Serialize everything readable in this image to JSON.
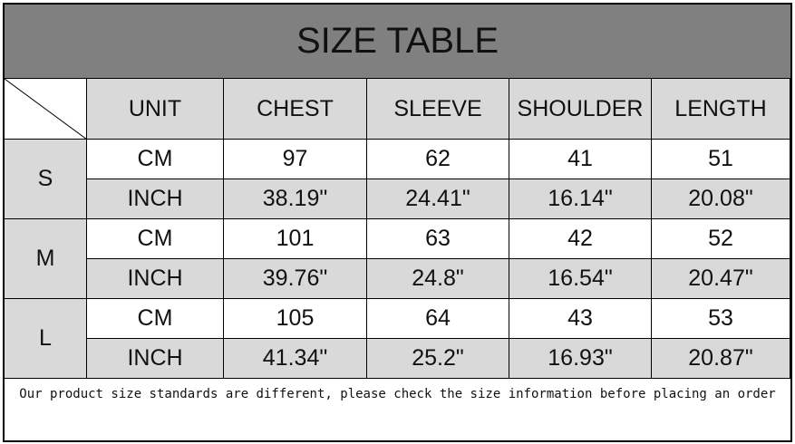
{
  "title": "SIZE TABLE",
  "headers": [
    "UNIT",
    "CHEST",
    "SLEEVE",
    "SHOULDER",
    "LENGTH"
  ],
  "sizes": [
    {
      "size": "S",
      "rows": [
        [
          "CM",
          "97",
          "62",
          "41",
          "51"
        ],
        [
          "INCH",
          "38.19\"",
          "24.41\"",
          "16.14\"",
          "20.08\""
        ]
      ]
    },
    {
      "size": "M",
      "rows": [
        [
          "CM",
          "101",
          "63",
          "42",
          "52"
        ],
        [
          "INCH",
          "39.76\"",
          "24.8\"",
          "16.54\"",
          "20.47\""
        ]
      ]
    },
    {
      "size": "L",
      "rows": [
        [
          "CM",
          "105",
          "64",
          "43",
          "53"
        ],
        [
          "INCH",
          "41.34\"",
          "25.2\"",
          "16.93\"",
          "20.87\""
        ]
      ]
    }
  ],
  "note": "Our product size standards are different, please check the size information before placing an order",
  "colors": {
    "title_bg": "#808080",
    "cell_gray": "#d9d9d9"
  }
}
